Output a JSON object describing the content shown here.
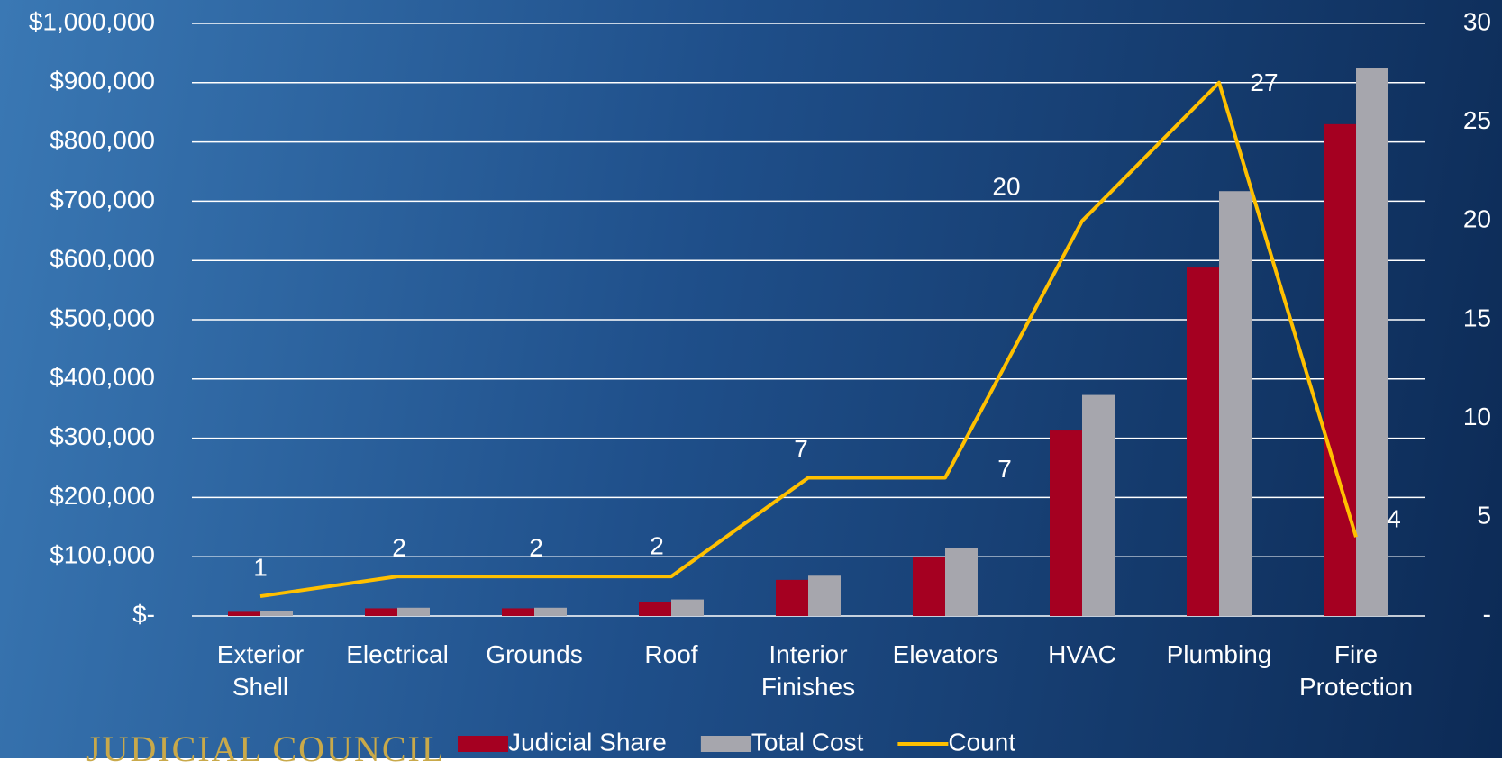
{
  "chart_data": {
    "type": "bar-line",
    "categories": [
      "Exterior Shell",
      "Electrical",
      "Grounds",
      "Roof",
      "Interior Finishes",
      "Elevators",
      "HVAC",
      "Plumbing",
      "Fire Protection"
    ],
    "series": [
      {
        "name": "Judicial Share",
        "color": "#a50021",
        "type": "bar",
        "values": [
          7000,
          13000,
          13000,
          24000,
          61000,
          100000,
          313000,
          588000,
          830000
        ]
      },
      {
        "name": "Total Cost",
        "color": "#a6a6ad",
        "type": "bar",
        "values": [
          8000,
          14000,
          14000,
          28000,
          68000,
          115000,
          373000,
          717000,
          924000
        ]
      },
      {
        "name": "Count",
        "color": "#ffc000",
        "type": "line",
        "axis": "y2",
        "values": [
          1,
          2,
          2,
          2,
          7,
          7,
          20,
          27,
          4
        ]
      }
    ],
    "ylim": [
      0,
      1000000
    ],
    "yticks": [
      {
        "value": 0,
        "label": "$-"
      },
      {
        "value": 100000,
        "label": "$100,000"
      },
      {
        "value": 200000,
        "label": "$200,000"
      },
      {
        "value": 300000,
        "label": "$300,000"
      },
      {
        "value": 400000,
        "label": "$400,000"
      },
      {
        "value": 500000,
        "label": "$500,000"
      },
      {
        "value": 600000,
        "label": "$600,000"
      },
      {
        "value": 700000,
        "label": "$700,000"
      },
      {
        "value": 800000,
        "label": "$800,000"
      },
      {
        "value": 900000,
        "label": "$900,000"
      },
      {
        "value": 1000000,
        "label": "$1,000,000"
      }
    ],
    "y2lim": [
      0,
      30
    ],
    "y2ticks": [
      {
        "value": 0,
        "label": "-"
      },
      5,
      10,
      15,
      20,
      25,
      30
    ],
    "grid": true,
    "legend": "bottom",
    "logo_text": "JUDICIAL COUNCIL"
  }
}
